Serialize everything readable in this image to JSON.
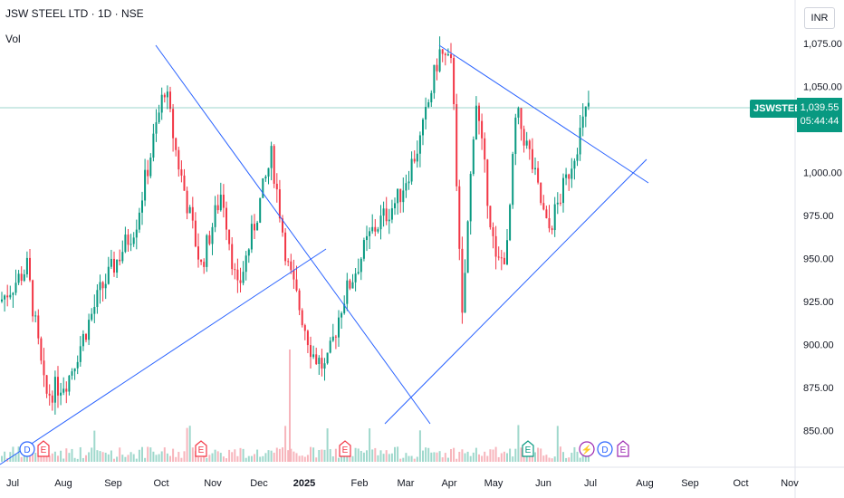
{
  "header": {
    "title": "JSW STEEL LTD · 1D · NSE",
    "volume_label": "Vol",
    "currency": "INR"
  },
  "price_tag": {
    "symbol": "JSWSTEEL",
    "price": "1,039.55",
    "countdown": "05:44:44"
  },
  "colors": {
    "up": "#089981",
    "down": "#f23645",
    "trendline": "#2962ff",
    "price_line": "#089981"
  },
  "chart_data": {
    "type": "candlestick",
    "y_axis": {
      "ticks": [
        "1,075.00",
        "1,050.00",
        "1,000.00",
        "975.00",
        "950.00",
        "925.00",
        "900.00",
        "875.00",
        "850.00"
      ],
      "ylim": [
        835,
        1090
      ]
    },
    "x_axis": {
      "ticks": [
        "Jul",
        "Aug",
        "Sep",
        "Oct",
        "Nov",
        "Dec",
        "2025",
        "Feb",
        "Mar",
        "Apr",
        "May",
        "Jun",
        "Jul",
        "Aug",
        "Sep",
        "Oct",
        "Nov"
      ]
    },
    "last_price": 1039.55,
    "event_markers": [
      {
        "type": "D",
        "month": "Jul"
      },
      {
        "type": "E",
        "month": "Jul"
      },
      {
        "type": "E",
        "month": "Oct"
      },
      {
        "type": "E",
        "month": "Jan"
      },
      {
        "type": "E",
        "month": "May"
      },
      {
        "type": "bolt",
        "month": "Jun"
      },
      {
        "type": "D",
        "month": "Jun"
      },
      {
        "type": "E",
        "month": "Jun"
      }
    ]
  }
}
